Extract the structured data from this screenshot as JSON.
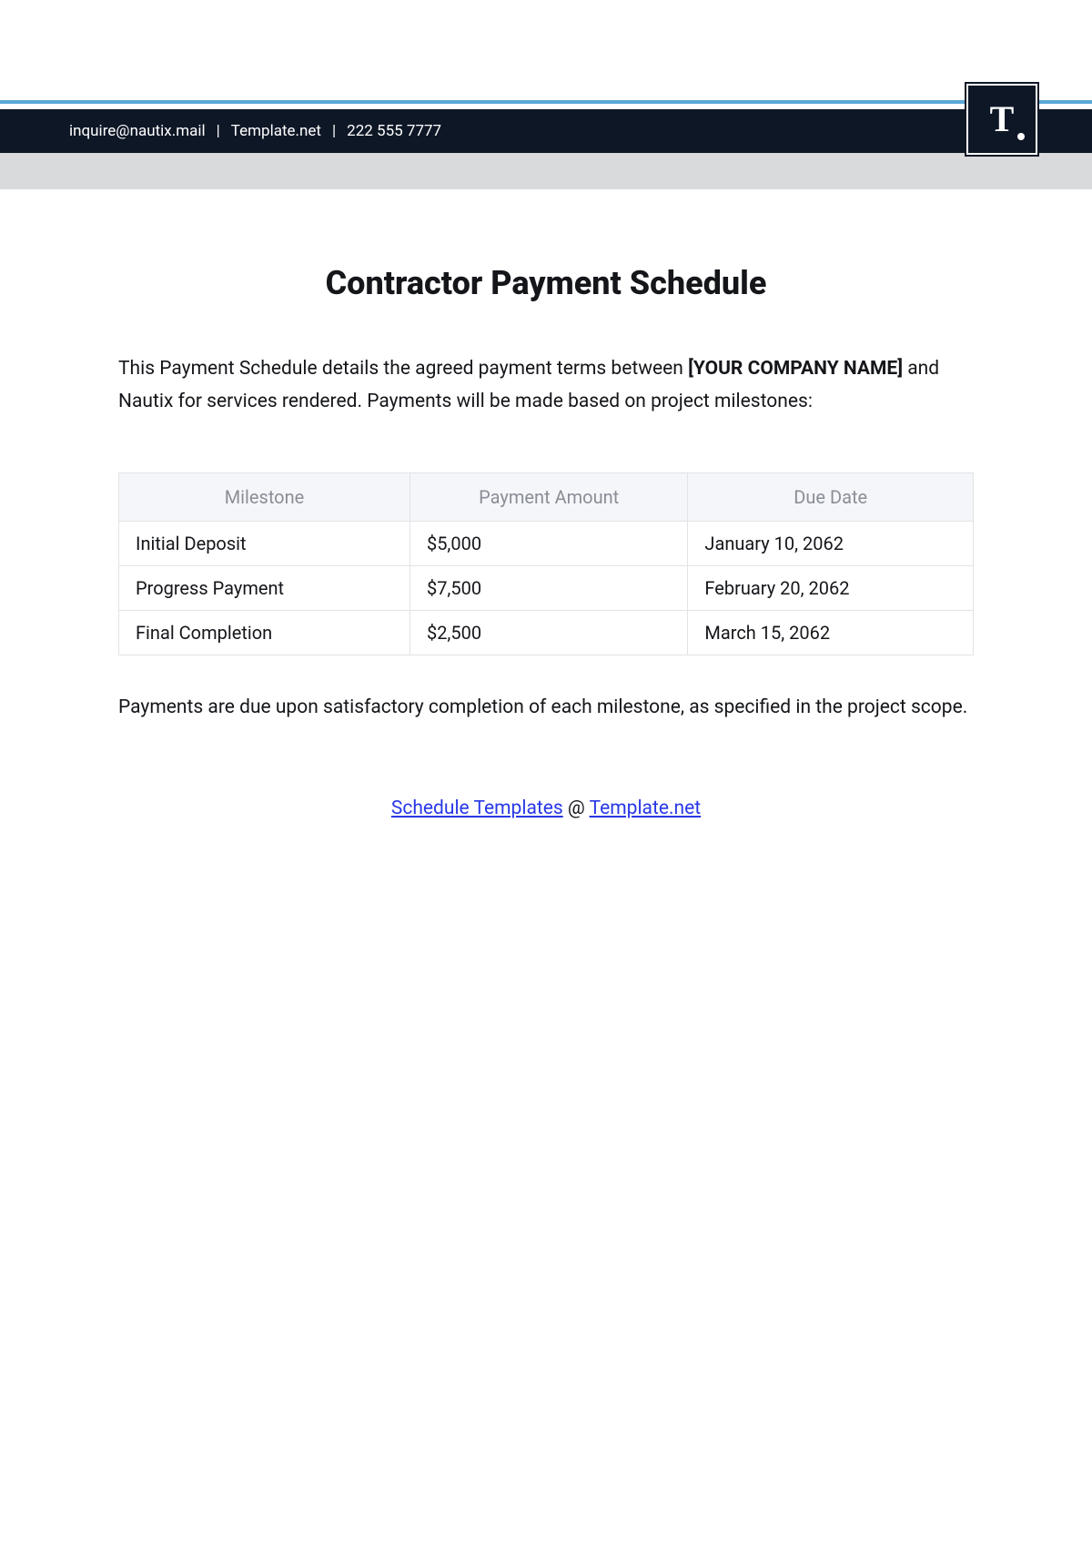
{
  "header": {
    "email": "inquire@nautix.mail",
    "site": "Template.net",
    "phone": "222 555 7777",
    "logo_letter": "T",
    "bar_bg": "#0e1726",
    "text_color": "#ffffff",
    "blue_line": "#5aa8d8",
    "gray_band": "#d9dadb"
  },
  "title": "Contractor Payment Schedule",
  "intro": {
    "part1": "This Payment Schedule details the agreed payment terms between ",
    "placeholder": "[YOUR COMPANY NAME]",
    "part2": " and Nautix for services rendered. Payments will be made based on project milestones:"
  },
  "table": {
    "columns": [
      "Milestone",
      "Payment Amount",
      "Due Date"
    ],
    "rows": [
      [
        "Initial Deposit",
        "$5,000",
        "January 10, 2062"
      ],
      [
        "Progress Payment",
        "$7,500",
        "February 20, 2062"
      ],
      [
        "Final Completion",
        "$2,500",
        "March 15, 2062"
      ]
    ],
    "header_bg": "#f5f6fa",
    "header_color": "#8a8e96",
    "border_color": "#e2e3e6"
  },
  "footnote": "Payments are due upon satisfactory completion of each milestone, as specified in the project scope.",
  "links": {
    "link1_text": "Schedule Templates",
    "at": " @ ",
    "link2_text": "Template.net",
    "link_color": "#2838e6"
  }
}
